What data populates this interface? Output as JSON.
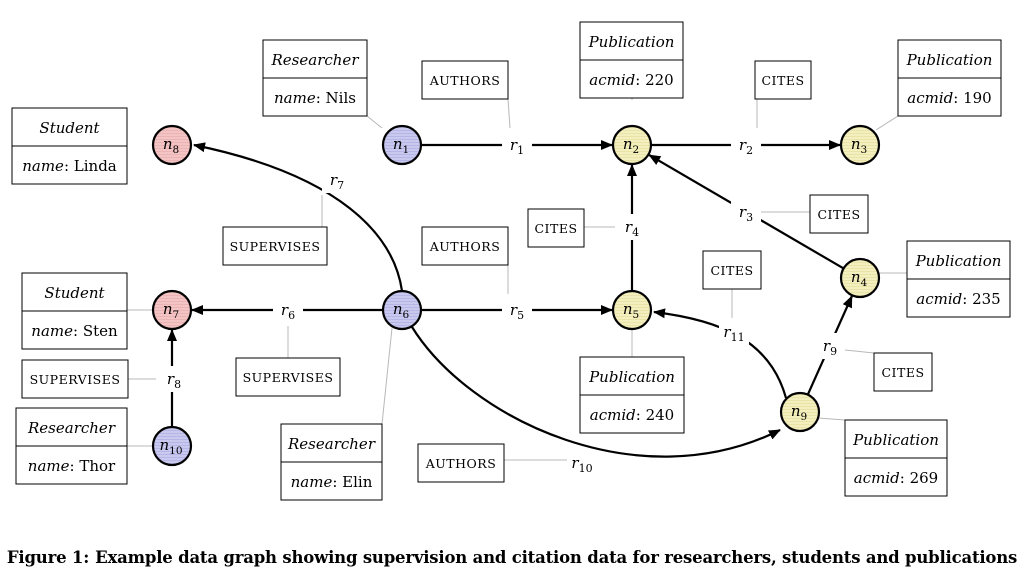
{
  "caption": {
    "figure": "Figure 1:",
    "text": "Example data graph showing supervision and citation data for researchers, students and publications"
  },
  "colors": {
    "researcher": "#c9c9f0",
    "student": "#f4c4c4",
    "publication": "#f4efbe",
    "stroke": "#000000",
    "leader": "#b8b8b8"
  },
  "nodes": [
    {
      "id": "n1",
      "sub": "1",
      "kind": "researcher"
    },
    {
      "id": "n2",
      "sub": "2",
      "kind": "publication"
    },
    {
      "id": "n3",
      "sub": "3",
      "kind": "publication"
    },
    {
      "id": "n4",
      "sub": "4",
      "kind": "publication"
    },
    {
      "id": "n5",
      "sub": "5",
      "kind": "publication"
    },
    {
      "id": "n6",
      "sub": "6",
      "kind": "researcher"
    },
    {
      "id": "n7",
      "sub": "7",
      "kind": "student"
    },
    {
      "id": "n8",
      "sub": "8",
      "kind": "student"
    },
    {
      "id": "n9",
      "sub": "9",
      "kind": "publication"
    },
    {
      "id": "n10",
      "sub": "10",
      "kind": "researcher"
    }
  ],
  "node_letter": "n",
  "edge_letter": "r",
  "edges": [
    {
      "id": "r1",
      "sub": "1",
      "from": "n1",
      "to": "n2"
    },
    {
      "id": "r2",
      "sub": "2",
      "from": "n2",
      "to": "n3"
    },
    {
      "id": "r3",
      "sub": "3",
      "from": "n4",
      "to": "n2"
    },
    {
      "id": "r4",
      "sub": "4",
      "from": "n5",
      "to": "n2"
    },
    {
      "id": "r5",
      "sub": "5",
      "from": "n6",
      "to": "n5"
    },
    {
      "id": "r6",
      "sub": "6",
      "from": "n6",
      "to": "n7"
    },
    {
      "id": "r7",
      "sub": "7",
      "from": "n6",
      "to": "n8"
    },
    {
      "id": "r8",
      "sub": "8",
      "from": "n10",
      "to": "n7"
    },
    {
      "id": "r9",
      "sub": "9",
      "from": "n9",
      "to": "n4"
    },
    {
      "id": "r10",
      "sub": "10",
      "from": "n6",
      "to": "n9"
    },
    {
      "id": "r11",
      "sub": "11",
      "from": "n9",
      "to": "n5"
    }
  ],
  "property_boxes": [
    {
      "node": "n8",
      "label": "Student",
      "key": "name",
      "value": "Linda"
    },
    {
      "node": "n1",
      "label": "Researcher",
      "key": "name",
      "value": "Nils"
    },
    {
      "node": "n2",
      "label": "Publication",
      "key": "acmid",
      "value": "220"
    },
    {
      "node": "n3",
      "label": "Publication",
      "key": "acmid",
      "value": "190"
    },
    {
      "node": "n4",
      "label": "Publication",
      "key": "acmid",
      "value": "235"
    },
    {
      "node": "n7",
      "label": "Student",
      "key": "name",
      "value": "Sten"
    },
    {
      "node": "n10",
      "label": "Researcher",
      "key": "name",
      "value": "Thor"
    },
    {
      "node": "n6",
      "label": "Researcher",
      "key": "name",
      "value": "Elin"
    },
    {
      "node": "n5",
      "label": "Publication",
      "key": "acmid",
      "value": "240"
    },
    {
      "node": "n9",
      "label": "Publication",
      "key": "acmid",
      "value": "269"
    }
  ],
  "edge_type_boxes": [
    {
      "edge": "r1",
      "label": "AUTHORS"
    },
    {
      "edge": "r2",
      "label": "CITES"
    },
    {
      "edge": "r7",
      "label": "SUPERVISES"
    },
    {
      "edge": "r3",
      "label": "CITES"
    },
    {
      "edge": "r4",
      "label": "CITES"
    },
    {
      "edge": "r5",
      "label": "AUTHORS"
    },
    {
      "edge": "r11",
      "label": "CITES"
    },
    {
      "edge": "r8",
      "label": "SUPERVISES"
    },
    {
      "edge": "r6",
      "label": "SUPERVISES"
    },
    {
      "edge": "r9",
      "label": "CITES"
    },
    {
      "edge": "r10",
      "label": "AUTHORS"
    }
  ]
}
